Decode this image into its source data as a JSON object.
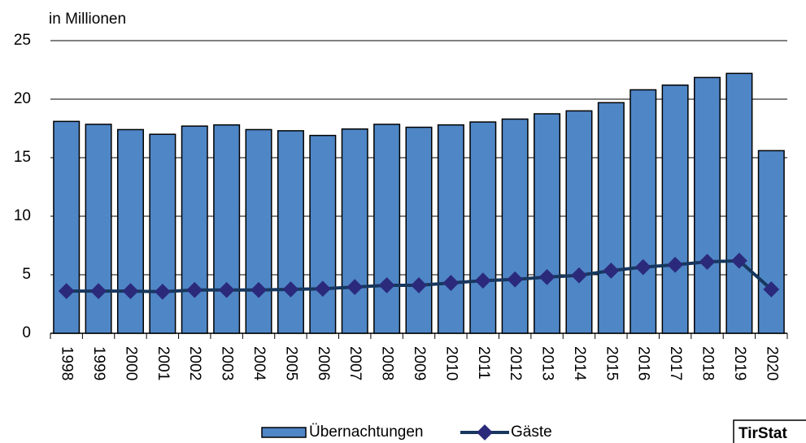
{
  "chart_data": {
    "type": "bar",
    "y_label": "in Millionen",
    "source": "TirStat",
    "categories": [
      "1998",
      "1999",
      "2000",
      "2001",
      "2002",
      "2003",
      "2004",
      "2005",
      "2006",
      "2007",
      "2008",
      "2009",
      "2010",
      "2011",
      "2012",
      "2013",
      "2014",
      "2015",
      "2016",
      "2017",
      "2018",
      "2019",
      "2020"
    ],
    "series": [
      {
        "name": "Übernachtungen",
        "type": "bar",
        "color": "#4f86c6",
        "values": [
          18.1,
          17.85,
          17.4,
          17.0,
          17.7,
          17.8,
          17.4,
          17.3,
          16.9,
          17.45,
          17.85,
          17.6,
          17.8,
          18.05,
          18.3,
          18.75,
          19.0,
          19.7,
          20.8,
          21.2,
          21.85,
          22.2,
          15.6
        ]
      },
      {
        "name": "Gäste",
        "type": "line",
        "color": "#17375e",
        "marker_color": "#2b2a7a",
        "values": [
          3.6,
          3.6,
          3.6,
          3.55,
          3.7,
          3.7,
          3.7,
          3.75,
          3.8,
          3.95,
          4.1,
          4.1,
          4.3,
          4.5,
          4.6,
          4.8,
          4.95,
          5.35,
          5.65,
          5.85,
          6.1,
          6.2,
          3.75
        ]
      }
    ],
    "ylim": [
      0,
      25
    ],
    "yticks": [
      0,
      5,
      10,
      15,
      20,
      25
    ],
    "grid": true
  }
}
